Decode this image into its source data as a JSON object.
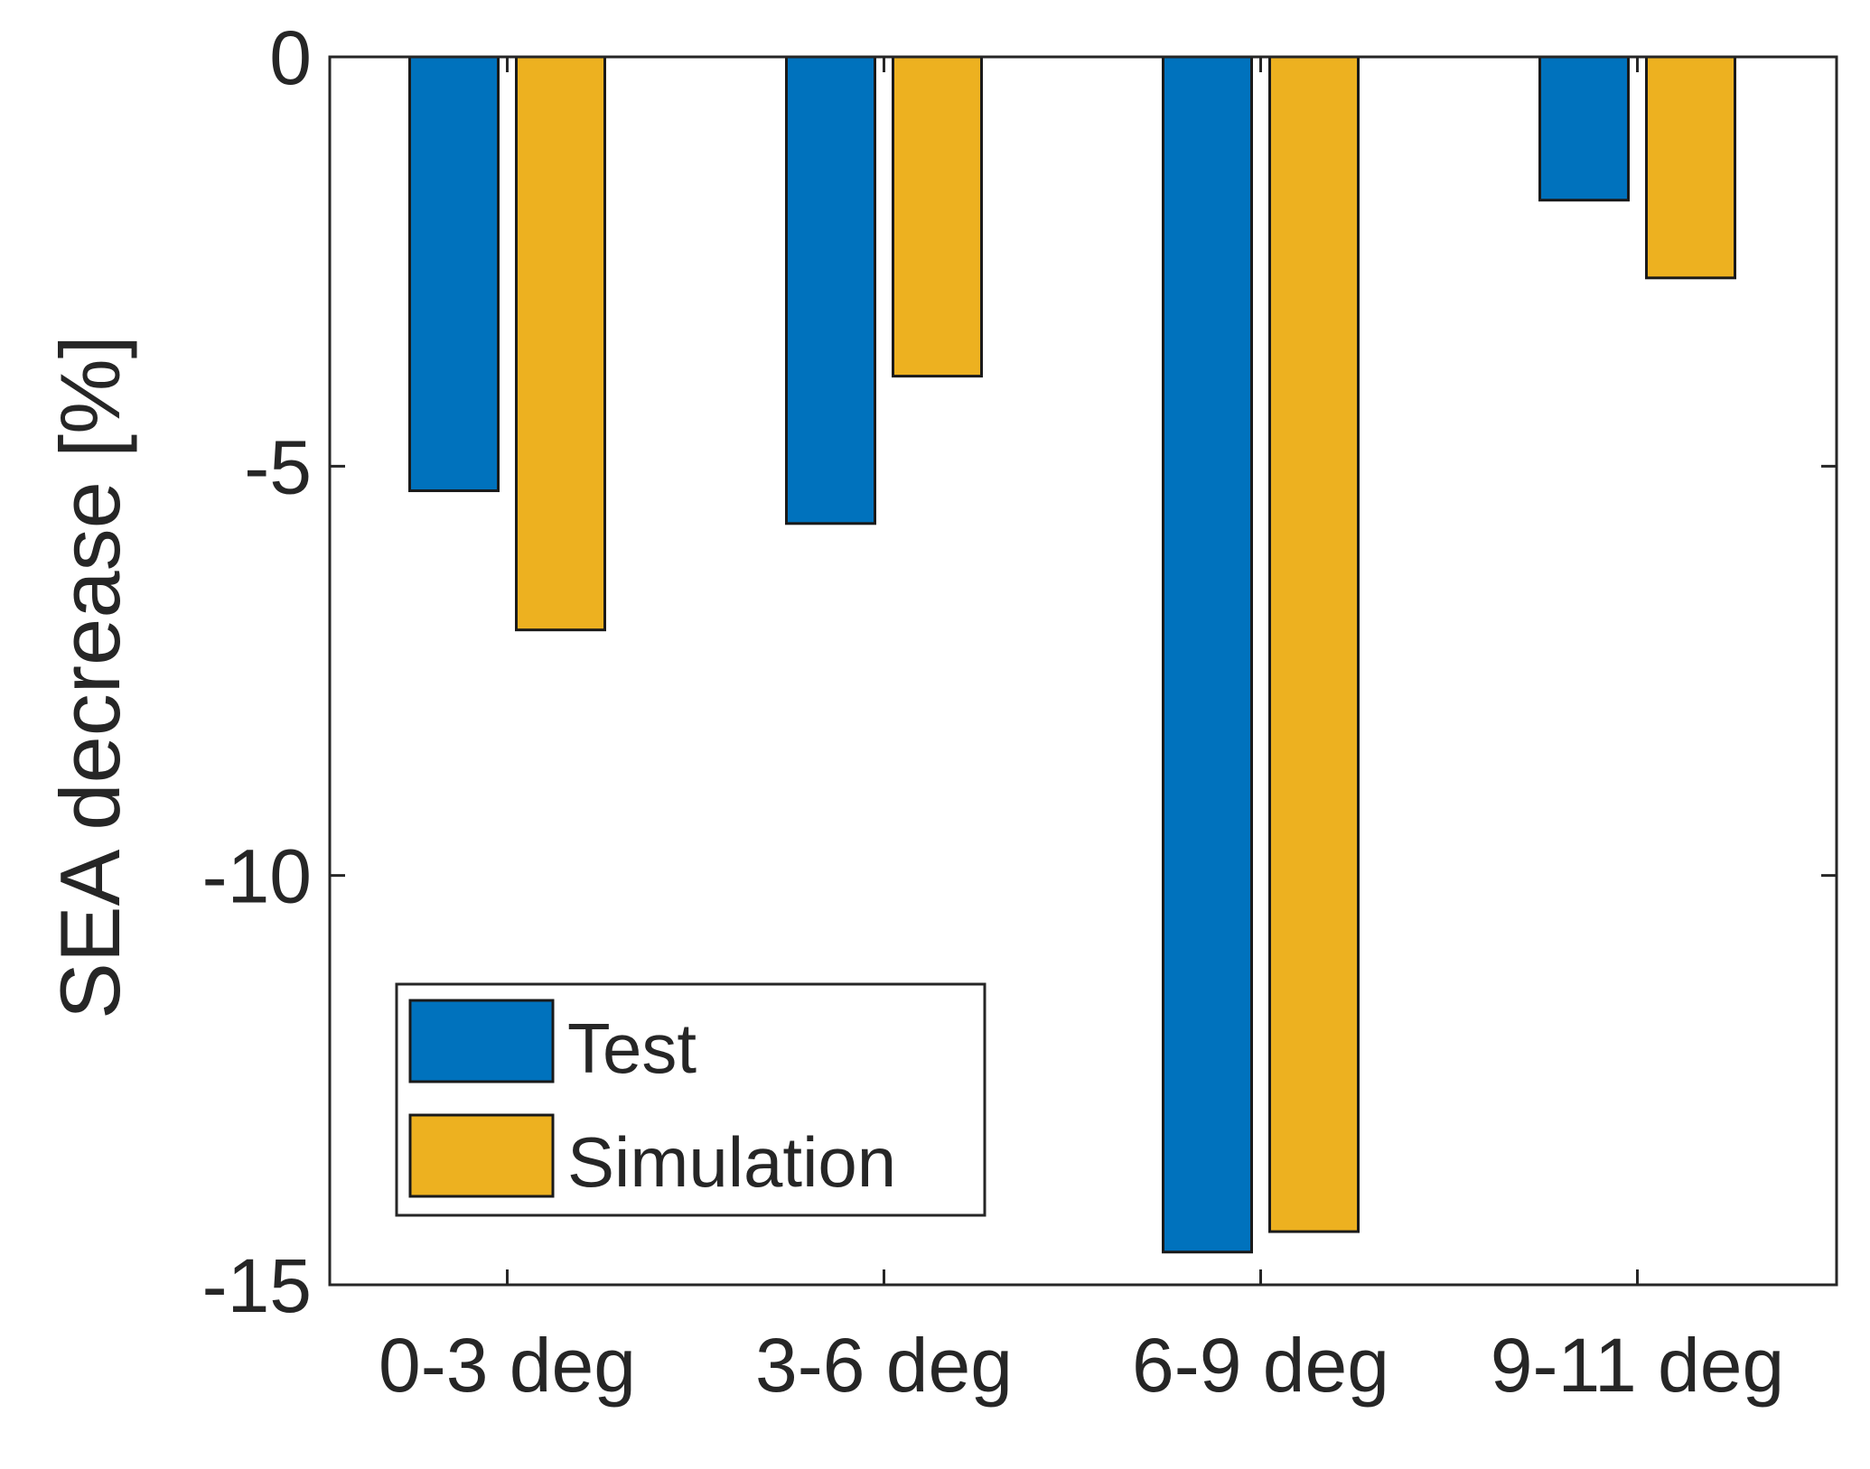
{
  "chart_data": {
    "type": "bar",
    "title": "",
    "xlabel": "",
    "ylabel": "SEA decrease [%]",
    "categories": [
      "0-3 deg",
      "3-6 deg",
      "6-9 deg",
      "9-11 deg"
    ],
    "series": [
      {
        "name": "Test",
        "color": "#0072BD",
        "values": [
          -5.3,
          -5.7,
          -14.6,
          -1.75
        ]
      },
      {
        "name": "Simulation",
        "color": "#EDB120",
        "values": [
          -7.0,
          -3.9,
          -14.35,
          -2.7
        ]
      }
    ],
    "ylim": [
      -15,
      0
    ],
    "yticks": [
      0,
      -5,
      -10,
      -15
    ],
    "ytick_labels": [
      "0",
      "-5",
      "-10",
      "-15"
    ],
    "grid": false,
    "legend": {
      "location": "bottom-left",
      "entries": [
        "Test",
        "Simulation"
      ]
    }
  }
}
